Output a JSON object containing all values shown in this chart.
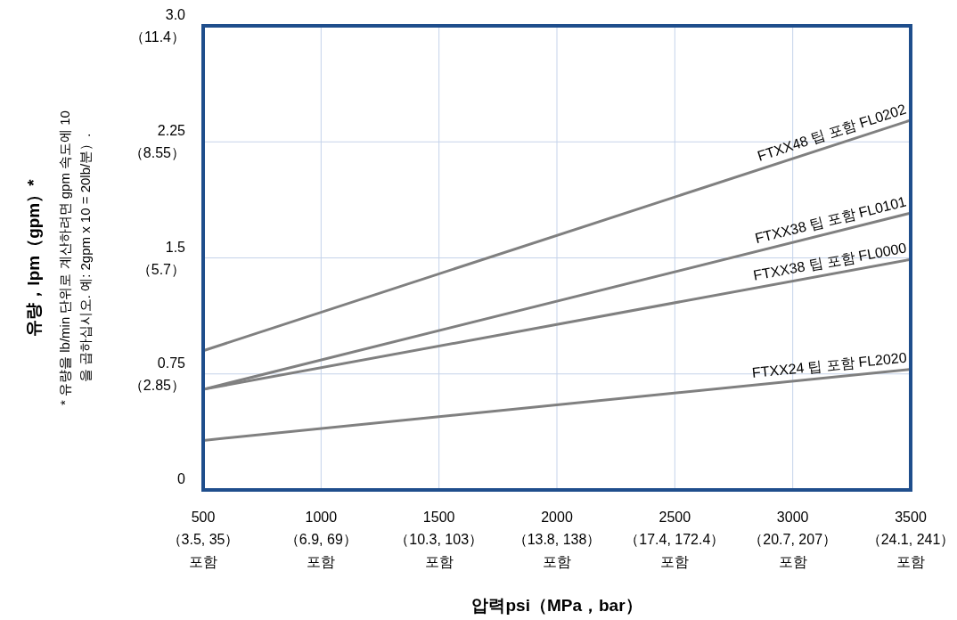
{
  "chart_data": {
    "type": "line",
    "xlabel": "압력psi（MPa，bar）",
    "annotations": [
      "* 유량을 lb/min 단위로 계산하려면 gpm 속도에 10\n을 곱하십시오. 예: 2gpm x 10 = 20lb/분）.",
      "（3.5, 35）",
      "（6.9, 69）",
      "（10.3, 103）",
      "（13.8, 138）",
      "（17.4, 172.4）",
      "（20.7, 207）",
      "（24.1, 241）",
      "포함",
      "포함",
      "포함",
      "포함",
      "포함",
      "포함",
      "포함",
      "유량，lpm（gpm）*"
    ],
    "x": [
      500,
      3500
    ],
    "xlim": [
      500,
      3500
    ],
    "xticks": [
      500,
      1000,
      1500,
      2000,
      2500,
      3000,
      3500
    ],
    "ylim": [
      0,
      3
    ],
    "yticks": [
      0,
      0.75,
      1.5,
      2.25,
      {
        "value": 3,
        "label": "3.0"
      }
    ],
    "y2lim": [
      0,
      11.4
    ],
    "y2ticks": [
      {
        "value": 2.85,
        "label": "（2.85）"
      },
      {
        "value": 5.7,
        "label": "（5.7）"
      },
      {
        "value": 8.55,
        "label": "（8.55）"
      },
      {
        "value": 11.4,
        "label": "（11.4）"
      }
    ],
    "grid": true,
    "marker": "none",
    "line_style": "solid",
    "series": [
      {
        "name": "FTXX48 팁 포함 FL0202",
        "color": "#808080",
        "values": [
          0.9,
          2.39
        ]
      },
      {
        "name": "FTXX38 팁 포함 FL0101",
        "color": "#808080",
        "values": [
          0.65,
          1.79
        ]
      },
      {
        "name": "FTXX38 팁 포함 FL0000",
        "color": "#808080",
        "values": [
          0.65,
          1.49
        ]
      },
      {
        "name": "FTXX24 팁 포함 FL2020",
        "color": "#808080",
        "values": [
          0.32,
          0.78
        ]
      }
    ]
  }
}
